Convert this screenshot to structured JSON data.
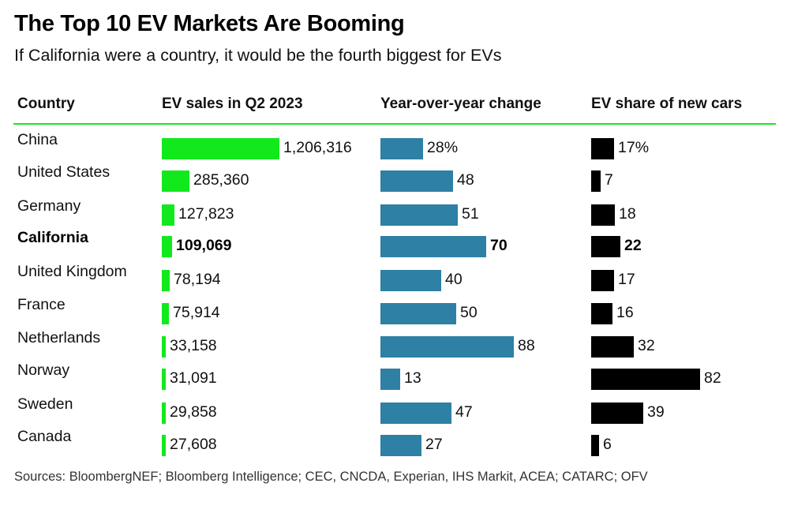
{
  "title": "The Top 10 EV Markets Are Booming",
  "subtitle": "If California were a country, it would be the fourth biggest for EVs",
  "source": "Sources: BloombergNEF; Bloomberg Intelligence; CEC, CNCDA, Experian, IHS Markit, ACEA; CATARC; OFV",
  "colors": {
    "sales_bar": "#12e91d",
    "yoy_bar": "#2e80a4",
    "share_bar": "#000000",
    "header_rule": "#1be61b"
  },
  "chart_data": {
    "type": "table",
    "title": "The Top 10 EV Markets Are Booming",
    "subtitle": "If California were a country, it would be the fourth biggest for EVs",
    "columns": [
      "Country",
      "EV sales in Q2 2023",
      "Year-over-year change",
      "EV share of new cars"
    ],
    "rows": [
      {
        "country": "China",
        "sales": 1206316,
        "sales_label": "1,206,316",
        "yoy": 28,
        "yoy_label": "28%",
        "share": 17,
        "share_label": "17%",
        "highlight": false
      },
      {
        "country": "United States",
        "sales": 285360,
        "sales_label": "285,360",
        "yoy": 48,
        "yoy_label": "48",
        "share": 7,
        "share_label": "7",
        "highlight": false
      },
      {
        "country": "Germany",
        "sales": 127823,
        "sales_label": "127,823",
        "yoy": 51,
        "yoy_label": "51",
        "share": 18,
        "share_label": "18",
        "highlight": false
      },
      {
        "country": "California",
        "sales": 109069,
        "sales_label": "109,069",
        "yoy": 70,
        "yoy_label": "70",
        "share": 22,
        "share_label": "22",
        "highlight": true
      },
      {
        "country": "United Kingdom",
        "sales": 78194,
        "sales_label": "78,194",
        "yoy": 40,
        "yoy_label": "40",
        "share": 17,
        "share_label": "17",
        "highlight": false
      },
      {
        "country": "France",
        "sales": 75914,
        "sales_label": "75,914",
        "yoy": 50,
        "yoy_label": "50",
        "share": 16,
        "share_label": "16",
        "highlight": false
      },
      {
        "country": "Netherlands",
        "sales": 33158,
        "sales_label": "33,158",
        "yoy": 88,
        "yoy_label": "88",
        "share": 32,
        "share_label": "32",
        "highlight": false
      },
      {
        "country": "Norway",
        "sales": 31091,
        "sales_label": "31,091",
        "yoy": 13,
        "yoy_label": "13",
        "share": 82,
        "share_label": "82",
        "highlight": false
      },
      {
        "country": "Sweden",
        "sales": 29858,
        "sales_label": "29,858",
        "yoy": 47,
        "yoy_label": "47",
        "share": 39,
        "share_label": "39",
        "highlight": false
      },
      {
        "country": "Canada",
        "sales": 27608,
        "sales_label": "27,608",
        "yoy": 27,
        "yoy_label": "27",
        "share": 6,
        "share_label": "6",
        "highlight": false
      }
    ],
    "units": {
      "sales": "vehicles",
      "yoy": "percent",
      "share": "percent"
    }
  }
}
